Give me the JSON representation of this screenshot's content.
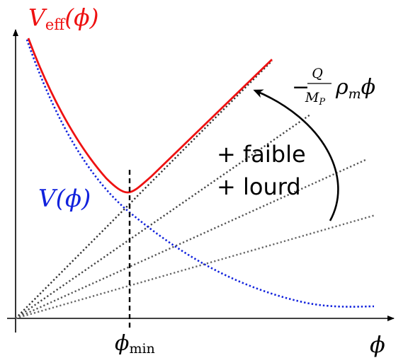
{
  "labels": {
    "veff_symbol": "V",
    "veff_subscript": "eff",
    "veff_arg": "(ϕ)",
    "v_symbol": "V",
    "v_arg": "(ϕ)",
    "coupling_sign": "−",
    "coupling_num": "Q",
    "coupling_den_symbol": "M",
    "coupling_den_sub": "P",
    "coupling_rho": "ρ",
    "coupling_rho_sub": "m",
    "coupling_phi": "ϕ",
    "note_line1": "+ faible",
    "note_line2": "+ lourd",
    "phi_min_symbol": "ϕ",
    "phi_min_sub": "min",
    "x_axis_symbol": "ϕ"
  },
  "colors": {
    "veff": "#ee1111",
    "v": "#1122dd",
    "coupling_lines": [
      "#333333",
      "#444444",
      "#555555",
      "#666666"
    ],
    "axes": "#000000"
  }
}
